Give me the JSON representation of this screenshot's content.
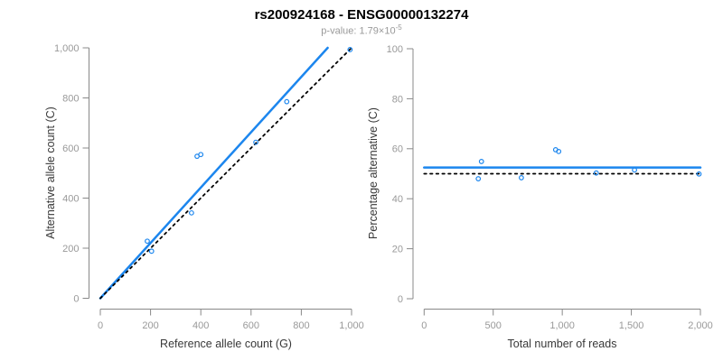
{
  "header": {
    "title": "rs200924168 - ENSG00000132274",
    "subtitle_main": "p-value: 1.79×10",
    "subtitle_exp": "-5"
  },
  "colors": {
    "blue": "#1C86EE",
    "black": "#000000",
    "axis": "#888888",
    "tick_label": "#999999",
    "axis_title": "#383838",
    "title": "#000000",
    "subtitle": "#999999"
  },
  "chart_data": [
    {
      "type": "scatter",
      "name": "allele-counts-panel",
      "xlabel": "Reference allele count (G)",
      "ylabel": "Alternative allele count (C)",
      "xlim": [
        0,
        1000
      ],
      "ylim": [
        0,
        1000
      ],
      "grid": false,
      "legend": "none",
      "xticks": [
        0,
        200,
        400,
        600,
        800,
        1000
      ],
      "yticks": [
        0,
        200,
        400,
        600,
        800,
        1000
      ],
      "xtick_labels": [
        "0",
        "200",
        "400",
        "600",
        "800",
        "1,000"
      ],
      "ytick_labels": [
        "0",
        "200",
        "400",
        "600",
        "800",
        "1,000"
      ],
      "points": [
        [
          187,
          228
        ],
        [
          204,
          188
        ],
        [
          363,
          341
        ],
        [
          385,
          567
        ],
        [
          400,
          574
        ],
        [
          619,
          623
        ],
        [
          742,
          785
        ],
        [
          994,
          993
        ]
      ],
      "lines": [
        {
          "name": "fit-line",
          "style": "solid",
          "color": "blue",
          "x1": 0,
          "y1": 0,
          "x2": 905,
          "y2": 1000
        },
        {
          "name": "identity-line",
          "style": "dotted",
          "color": "black",
          "x1": 0,
          "y1": 0,
          "x2": 1000,
          "y2": 1000
        }
      ]
    },
    {
      "type": "scatter",
      "name": "percentage-panel",
      "xlabel": "Total number of reads",
      "ylabel": "Percentage alternative (C)",
      "xlim": [
        0,
        2000
      ],
      "ylim": [
        0,
        100
      ],
      "grid": false,
      "legend": "none",
      "xticks": [
        0,
        500,
        1000,
        1500,
        2000
      ],
      "yticks": [
        0,
        20,
        40,
        60,
        80,
        100
      ],
      "xtick_labels": [
        "0",
        "500",
        "1,000",
        "1,500",
        "2,000"
      ],
      "ytick_labels": [
        "0",
        "20",
        "40",
        "60",
        "80",
        "100"
      ],
      "points": [
        [
          415,
          54.9
        ],
        [
          392,
          48.0
        ],
        [
          704,
          48.4
        ],
        [
          952,
          59.6
        ],
        [
          974,
          58.9
        ],
        [
          1246,
          50.3
        ],
        [
          1523,
          51.5
        ],
        [
          1990,
          49.9
        ]
      ],
      "lines": [
        {
          "name": "mean-line",
          "style": "solid",
          "color": "blue",
          "x1": 0,
          "y1": 52.5,
          "x2": 2000,
          "y2": 52.5
        },
        {
          "name": "null-line",
          "style": "dotted",
          "color": "black",
          "x1": 0,
          "y1": 50,
          "x2": 2000,
          "y2": 50
        }
      ]
    }
  ]
}
